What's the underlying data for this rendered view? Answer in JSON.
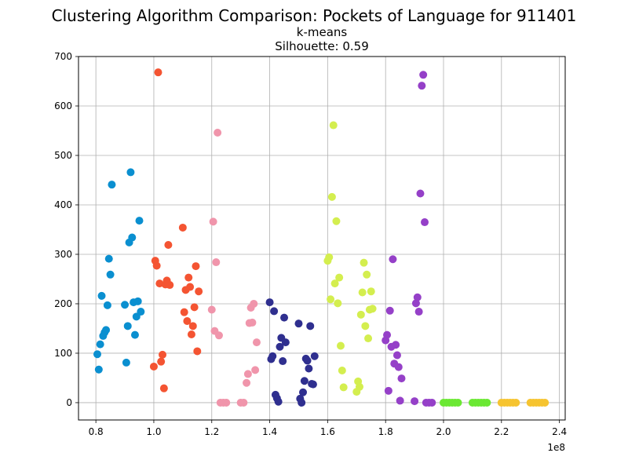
{
  "chart_data": {
    "type": "scatter",
    "title": "Clustering Algorithm Comparison: Pockets of Language for 911401",
    "subtitle_algorithm": "k-means",
    "subtitle_metric": "Silhouette: 0.59",
    "x_offset_label": "1e8",
    "xlim": [
      0.74,
      2.42
    ],
    "ylim": [
      -35,
      700
    ],
    "x_ticks": [
      0.8,
      1.0,
      1.2,
      1.4,
      1.6,
      1.8,
      2.0,
      2.2,
      2.4
    ],
    "x_tick_labels": [
      "0.8",
      "1.0",
      "1.2",
      "1.4",
      "1.6",
      "1.8",
      "2.0",
      "2.2",
      "2.4"
    ],
    "y_ticks": [
      0,
      100,
      200,
      300,
      400,
      500,
      600,
      700
    ],
    "y_tick_labels": [
      "0",
      "100",
      "200",
      "300",
      "400",
      "500",
      "600",
      "700"
    ],
    "grid": true,
    "series": [
      {
        "color": "#0a8fd0",
        "points": [
          [
            0.805,
            98
          ],
          [
            0.81,
            67
          ],
          [
            0.815,
            118
          ],
          [
            0.82,
            216
          ],
          [
            0.825,
            135
          ],
          [
            0.83,
            142
          ],
          [
            0.835,
            147
          ],
          [
            0.84,
            197
          ],
          [
            0.845,
            291
          ],
          [
            0.85,
            259
          ],
          [
            0.855,
            441
          ],
          [
            0.9,
            198
          ],
          [
            0.905,
            81
          ],
          [
            0.91,
            155
          ],
          [
            0.915,
            324
          ],
          [
            0.92,
            466
          ],
          [
            0.925,
            334
          ],
          [
            0.93,
            203
          ],
          [
            0.935,
            137
          ],
          [
            0.94,
            174
          ],
          [
            0.945,
            205
          ],
          [
            0.95,
            368
          ],
          [
            0.955,
            184
          ]
        ]
      },
      {
        "color": "#f45432",
        "points": [
          [
            1.0,
            73
          ],
          [
            1.005,
            287
          ],
          [
            1.01,
            277
          ],
          [
            1.015,
            668
          ],
          [
            1.02,
            241
          ],
          [
            1.025,
            83
          ],
          [
            1.03,
            97
          ],
          [
            1.035,
            29
          ],
          [
            1.04,
            239
          ],
          [
            1.045,
            247
          ],
          [
            1.05,
            319
          ],
          [
            1.055,
            238
          ],
          [
            1.1,
            354
          ],
          [
            1.105,
            183
          ],
          [
            1.11,
            228
          ],
          [
            1.115,
            165
          ],
          [
            1.12,
            253
          ],
          [
            1.125,
            234
          ],
          [
            1.13,
            138
          ],
          [
            1.135,
            155
          ],
          [
            1.14,
            193
          ],
          [
            1.145,
            276
          ],
          [
            1.15,
            104
          ],
          [
            1.155,
            225
          ]
        ]
      },
      {
        "color": "#f095ab",
        "points": [
          [
            1.2,
            188
          ],
          [
            1.205,
            366
          ],
          [
            1.21,
            145
          ],
          [
            1.215,
            284
          ],
          [
            1.22,
            546
          ],
          [
            1.225,
            136
          ],
          [
            1.23,
            0
          ],
          [
            1.24,
            0
          ],
          [
            1.25,
            0
          ],
          [
            1.3,
            0
          ],
          [
            1.31,
            0
          ],
          [
            1.32,
            40
          ],
          [
            1.325,
            58
          ],
          [
            1.33,
            161
          ],
          [
            1.335,
            192
          ],
          [
            1.34,
            162
          ],
          [
            1.345,
            200
          ],
          [
            1.35,
            66
          ],
          [
            1.355,
            122
          ]
        ]
      },
      {
        "color": "#2f2f8f",
        "points": [
          [
            1.4,
            203
          ],
          [
            1.405,
            88
          ],
          [
            1.41,
            94
          ],
          [
            1.415,
            185
          ],
          [
            1.42,
            16
          ],
          [
            1.425,
            9
          ],
          [
            1.43,
            2
          ],
          [
            1.435,
            113
          ],
          [
            1.44,
            131
          ],
          [
            1.445,
            84
          ],
          [
            1.45,
            172
          ],
          [
            1.455,
            122
          ],
          [
            1.5,
            160
          ],
          [
            1.505,
            8
          ],
          [
            1.51,
            0
          ],
          [
            1.515,
            21
          ],
          [
            1.52,
            44
          ],
          [
            1.525,
            89
          ],
          [
            1.53,
            85
          ],
          [
            1.535,
            69
          ],
          [
            1.54,
            155
          ],
          [
            1.545,
            38
          ],
          [
            1.55,
            37
          ],
          [
            1.555,
            94
          ]
        ]
      },
      {
        "color": "#d4ee4f",
        "points": [
          [
            1.6,
            287
          ],
          [
            1.605,
            294
          ],
          [
            1.61,
            209
          ],
          [
            1.615,
            416
          ],
          [
            1.62,
            561
          ],
          [
            1.625,
            241
          ],
          [
            1.63,
            367
          ],
          [
            1.635,
            201
          ],
          [
            1.64,
            253
          ],
          [
            1.645,
            115
          ],
          [
            1.65,
            65
          ],
          [
            1.655,
            31
          ],
          [
            1.7,
            22
          ],
          [
            1.705,
            43
          ],
          [
            1.71,
            32
          ],
          [
            1.715,
            178
          ],
          [
            1.72,
            223
          ],
          [
            1.725,
            283
          ],
          [
            1.73,
            155
          ],
          [
            1.735,
            259
          ],
          [
            1.74,
            130
          ],
          [
            1.745,
            188
          ],
          [
            1.75,
            225
          ],
          [
            1.755,
            190
          ]
        ]
      },
      {
        "color": "#9540c8",
        "points": [
          [
            1.8,
            126
          ],
          [
            1.805,
            137
          ],
          [
            1.81,
            24
          ],
          [
            1.815,
            186
          ],
          [
            1.82,
            113
          ],
          [
            1.825,
            290
          ],
          [
            1.83,
            79
          ],
          [
            1.835,
            117
          ],
          [
            1.84,
            96
          ],
          [
            1.845,
            72
          ],
          [
            1.85,
            4
          ],
          [
            1.855,
            49
          ],
          [
            1.9,
            3
          ],
          [
            1.905,
            201
          ],
          [
            1.91,
            213
          ],
          [
            1.915,
            184
          ],
          [
            1.92,
            423
          ],
          [
            1.925,
            641
          ],
          [
            1.93,
            663
          ],
          [
            1.935,
            365
          ],
          [
            1.94,
            0
          ],
          [
            1.95,
            0
          ],
          [
            1.96,
            0
          ]
        ]
      },
      {
        "color": "#6be833",
        "points": [
          [
            2.0,
            0
          ],
          [
            2.01,
            0
          ],
          [
            2.02,
            0
          ],
          [
            2.03,
            0
          ],
          [
            2.04,
            0
          ],
          [
            2.05,
            0
          ],
          [
            2.1,
            0
          ],
          [
            2.11,
            0
          ],
          [
            2.12,
            0
          ],
          [
            2.13,
            0
          ],
          [
            2.14,
            0
          ],
          [
            2.15,
            0
          ]
        ]
      },
      {
        "color": "#f6c430",
        "points": [
          [
            2.2,
            0
          ],
          [
            2.21,
            0
          ],
          [
            2.22,
            0
          ],
          [
            2.23,
            0
          ],
          [
            2.24,
            0
          ],
          [
            2.25,
            0
          ],
          [
            2.3,
            0
          ],
          [
            2.31,
            0
          ],
          [
            2.32,
            0
          ],
          [
            2.33,
            0
          ],
          [
            2.34,
            0
          ],
          [
            2.35,
            0
          ]
        ]
      }
    ]
  }
}
